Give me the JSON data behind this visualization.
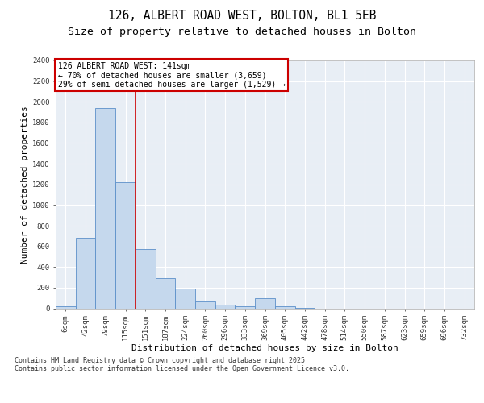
{
  "title_line1": "126, ALBERT ROAD WEST, BOLTON, BL1 5EB",
  "title_line2": "Size of property relative to detached houses in Bolton",
  "xlabel": "Distribution of detached houses by size in Bolton",
  "ylabel": "Number of detached properties",
  "categories": [
    "6sqm",
    "42sqm",
    "79sqm",
    "115sqm",
    "151sqm",
    "187sqm",
    "224sqm",
    "260sqm",
    "296sqm",
    "333sqm",
    "369sqm",
    "405sqm",
    "442sqm",
    "478sqm",
    "514sqm",
    "550sqm",
    "587sqm",
    "623sqm",
    "659sqm",
    "696sqm",
    "732sqm"
  ],
  "values": [
    18,
    680,
    1940,
    1220,
    570,
    290,
    195,
    65,
    35,
    20,
    95,
    18,
    5,
    0,
    0,
    0,
    0,
    0,
    0,
    0,
    0
  ],
  "bar_color": "#c5d8ed",
  "bar_edge_color": "#5b8fc9",
  "background_color": "#e8eef5",
  "grid_color": "#ffffff",
  "vline_x": 3.5,
  "vline_color": "#cc0000",
  "annotation_text": "126 ALBERT ROAD WEST: 141sqm\n← 70% of detached houses are smaller (3,659)\n29% of semi-detached houses are larger (1,529) →",
  "annotation_box_color": "#cc0000",
  "ylim": [
    0,
    2400
  ],
  "yticks": [
    0,
    200,
    400,
    600,
    800,
    1000,
    1200,
    1400,
    1600,
    1800,
    2000,
    2200,
    2400
  ],
  "footnote": "Contains HM Land Registry data © Crown copyright and database right 2025.\nContains public sector information licensed under the Open Government Licence v3.0.",
  "title_fontsize": 10.5,
  "subtitle_fontsize": 9.5,
  "tick_fontsize": 6.5,
  "label_fontsize": 8,
  "annotation_fontsize": 7,
  "footnote_fontsize": 6
}
